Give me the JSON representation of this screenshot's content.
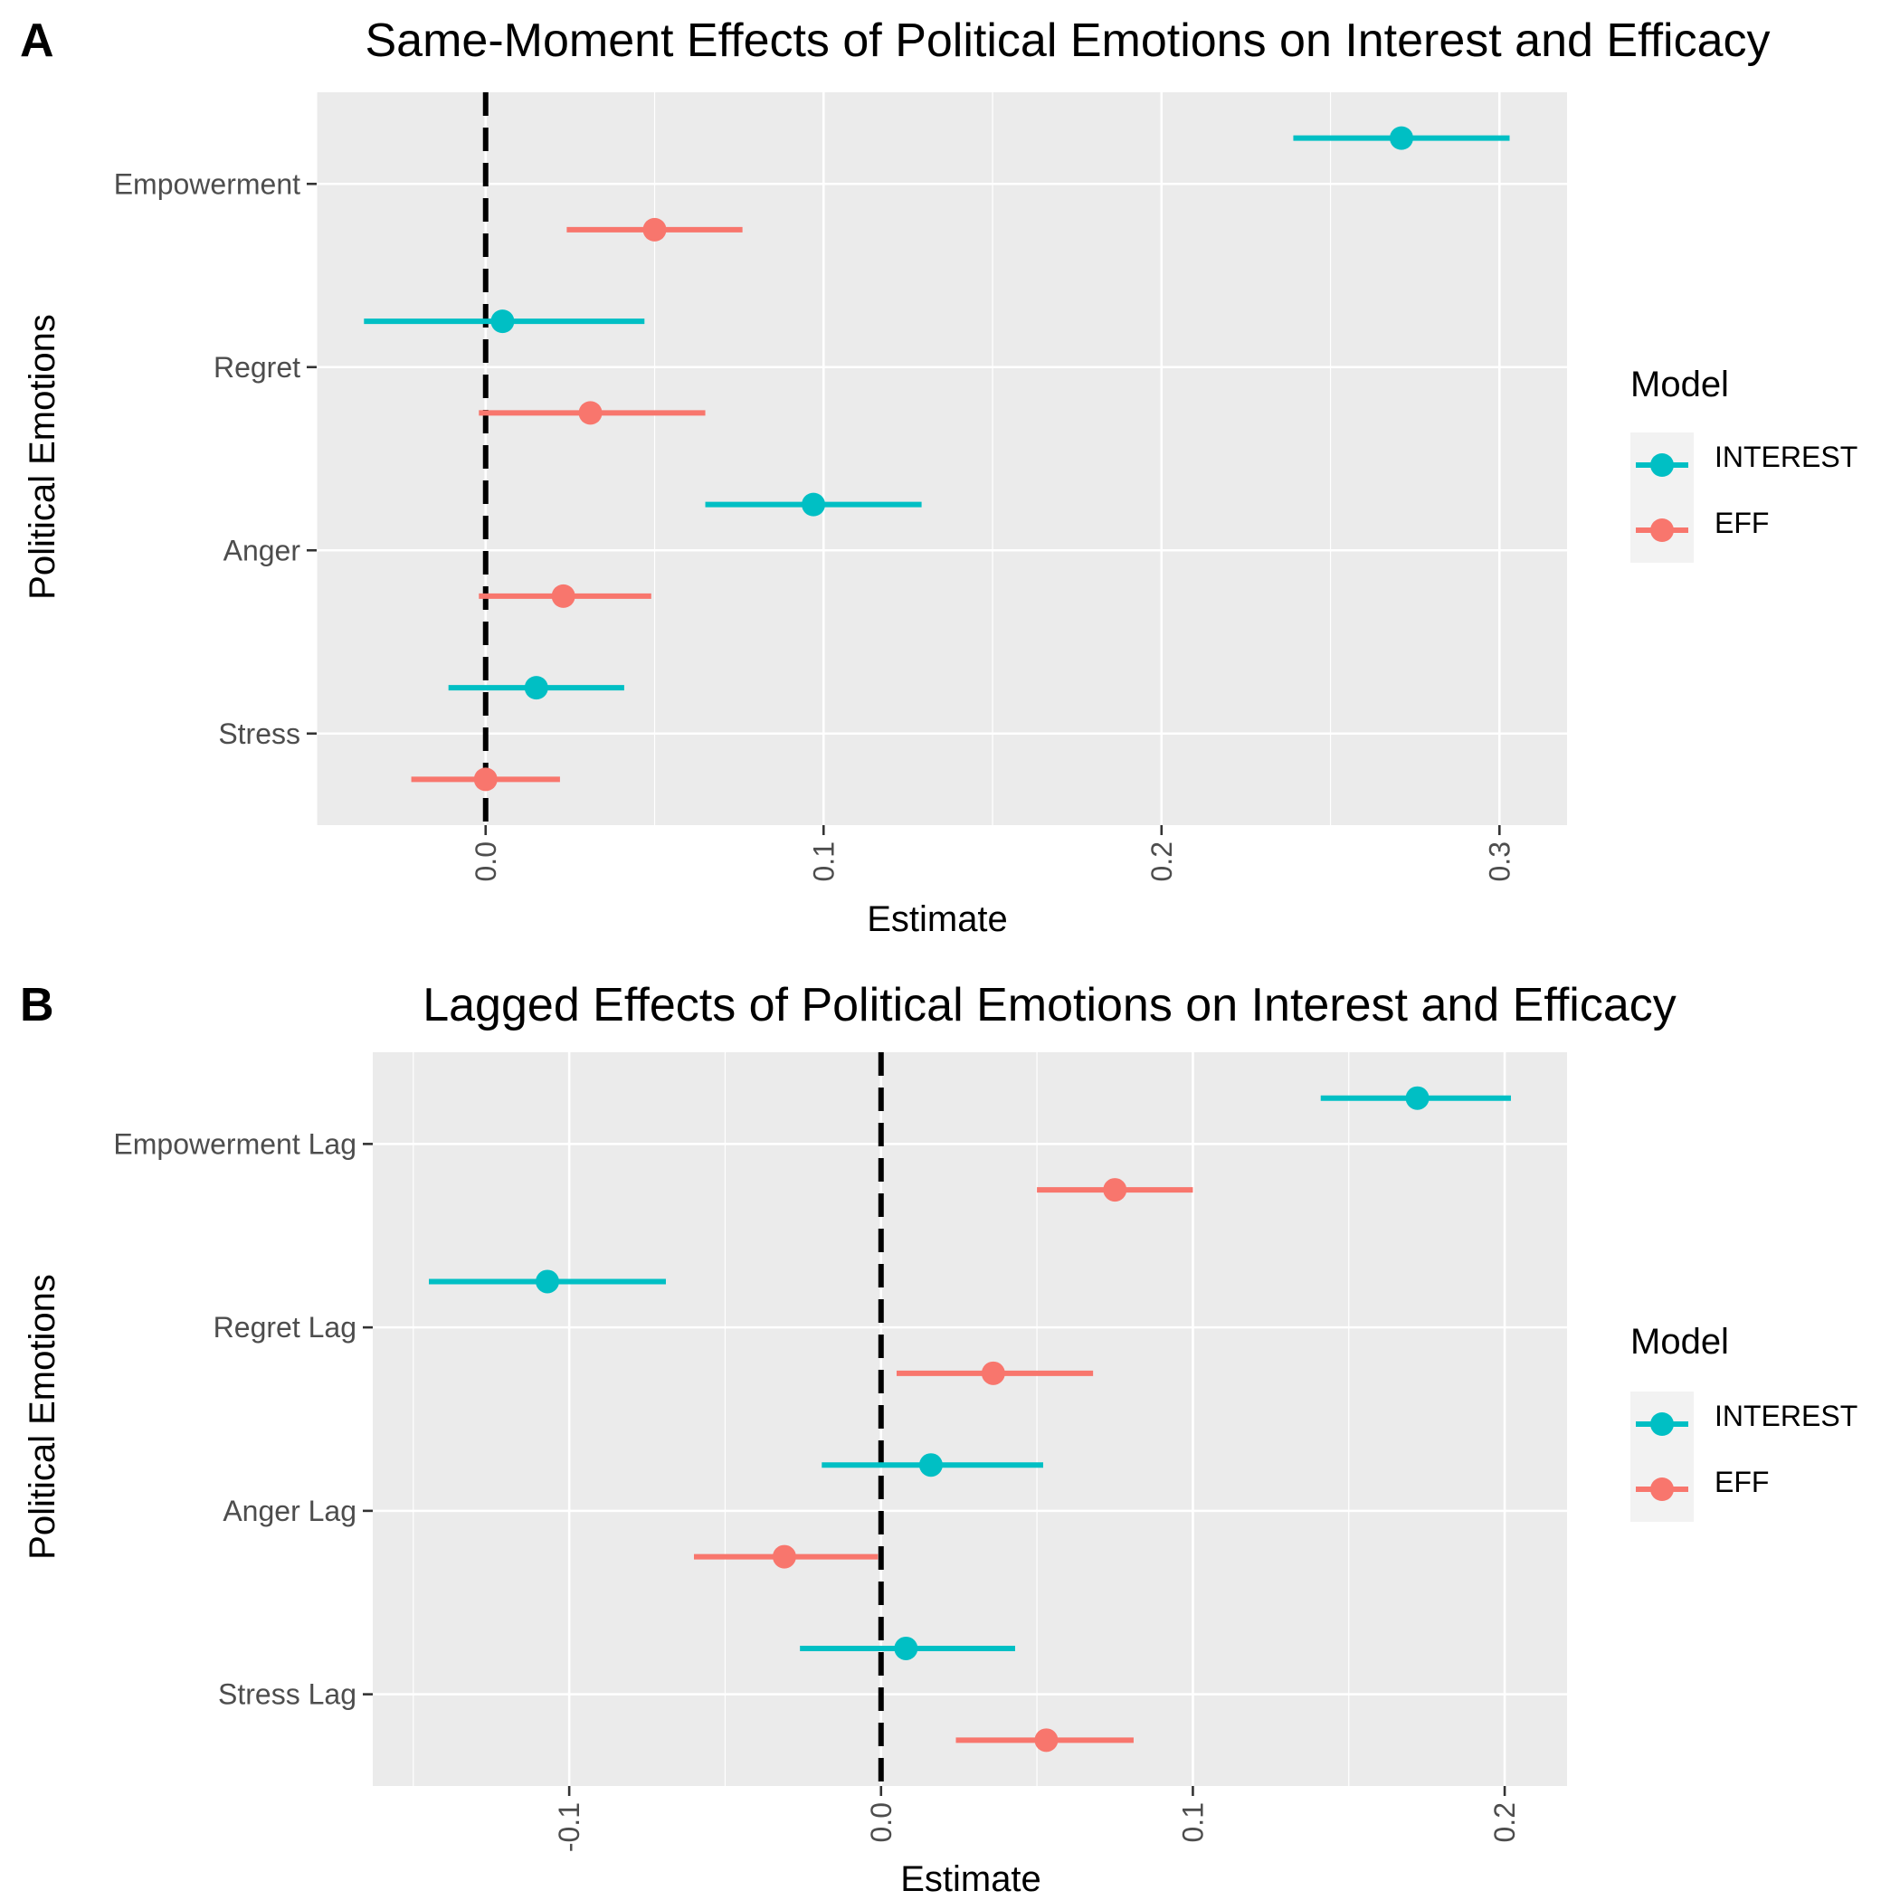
{
  "colors": {
    "INTEREST": "#00BFC4",
    "EFF": "#F8766D",
    "panel_bg": "#EBEBEB",
    "grid": "#FFFFFF",
    "zero_line": "#000000"
  },
  "chart_data": [
    {
      "type": "errorbar-dot",
      "panel_letter": "A",
      "title": "Same-Moment Effects of Political Emotions on Interest and Efficacy",
      "xlabel": "Estimate",
      "ylabel": "Political Emotions",
      "xlim": [
        -0.05,
        0.32
      ],
      "xticks": [
        "0.0",
        "0.1",
        "0.2",
        "0.3"
      ],
      "xtick_values": [
        0.0,
        0.1,
        0.2,
        0.3
      ],
      "categories": [
        "Empowerment",
        "Regret",
        "Anger",
        "Stress"
      ],
      "reference_line": 0,
      "legend": {
        "title": "Model",
        "position": "right",
        "entries": [
          "INTEREST",
          "EFF"
        ]
      },
      "series": [
        {
          "name": "INTEREST",
          "estimates": [
            0.271,
            0.005,
            0.097,
            0.015
          ],
          "lower": [
            0.239,
            -0.036,
            0.065,
            -0.011
          ],
          "upper": [
            0.303,
            0.047,
            0.129,
            0.041
          ]
        },
        {
          "name": "EFF",
          "estimates": [
            0.05,
            0.031,
            0.023,
            0.0
          ],
          "lower": [
            0.024,
            -0.002,
            -0.002,
            -0.022
          ],
          "upper": [
            0.076,
            0.065,
            0.049,
            0.022
          ]
        }
      ]
    },
    {
      "type": "errorbar-dot",
      "panel_letter": "B",
      "title": "Lagged Effects of Political Emotions on Interest and Efficacy",
      "xlabel": "Estimate",
      "ylabel": "Political Emotions",
      "xlim": [
        -0.163,
        0.22
      ],
      "xticks": [
        "-0.1",
        "0.0",
        "0.1",
        "0.2"
      ],
      "xtick_values": [
        -0.1,
        0.0,
        0.1,
        0.2
      ],
      "categories": [
        "Empowerment Lag",
        "Regret Lag",
        "Anger Lag",
        "Stress Lag"
      ],
      "reference_line": 0,
      "legend": {
        "title": "Model",
        "position": "right",
        "entries": [
          "INTEREST",
          "EFF"
        ]
      },
      "series": [
        {
          "name": "INTEREST",
          "estimates": [
            0.172,
            -0.107,
            0.016,
            0.008
          ],
          "lower": [
            0.141,
            -0.145,
            -0.019,
            -0.026
          ],
          "upper": [
            0.202,
            -0.069,
            0.052,
            0.043
          ]
        },
        {
          "name": "EFF",
          "estimates": [
            0.075,
            0.036,
            -0.031,
            0.053
          ],
          "lower": [
            0.05,
            0.005,
            -0.06,
            0.024
          ],
          "upper": [
            0.1,
            0.068,
            -0.001,
            0.081
          ]
        }
      ]
    }
  ]
}
